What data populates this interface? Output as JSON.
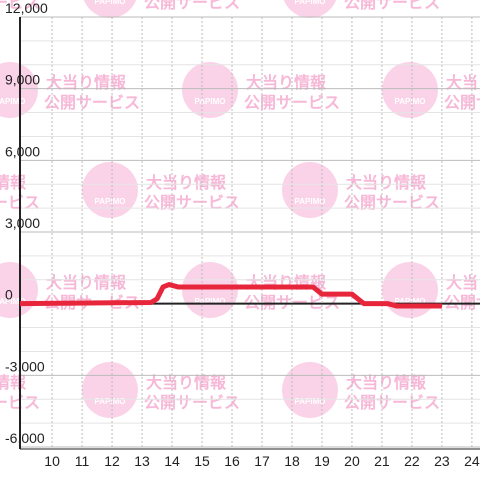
{
  "chart_data": {
    "type": "line",
    "x": [
      8.93,
      13.3,
      13.5,
      13.7,
      13.9,
      14.2,
      18.7,
      19.0,
      20.0,
      20.4,
      21.2,
      21.5,
      23.0
    ],
    "series": [
      {
        "color": "#e8263b",
        "values": [
          0,
          50,
          200,
          700,
          800,
          700,
          700,
          400,
          400,
          0,
          0,
          -100,
          -100
        ]
      }
    ],
    "xlim": [
      8.93,
      24.27
    ],
    "xticks": [
      10,
      11,
      12,
      13,
      14,
      15,
      16,
      17,
      18,
      19,
      20,
      21,
      22,
      23,
      24
    ],
    "ylim": [
      -6000,
      12000
    ],
    "yticks": [
      {
        "value": -6000,
        "label": "-6,000"
      },
      {
        "value": -3000,
        "label": "-3,000"
      },
      0,
      {
        "value": 3000,
        "label": "3,000"
      },
      {
        "value": 6000,
        "label": "6,000"
      },
      {
        "value": 9000,
        "label": "9,000"
      },
      {
        "value": 12000,
        "label": "12,000"
      }
    ],
    "yminor": [
      -5000,
      -4000,
      -2000,
      -1000,
      1000,
      2000,
      4000,
      5000,
      7000,
      8000,
      10000,
      11000
    ],
    "grid": true
  },
  "watermark": {
    "logo": "PAPIMO",
    "line1": "大当り情報",
    "line2": "公開サービス"
  }
}
